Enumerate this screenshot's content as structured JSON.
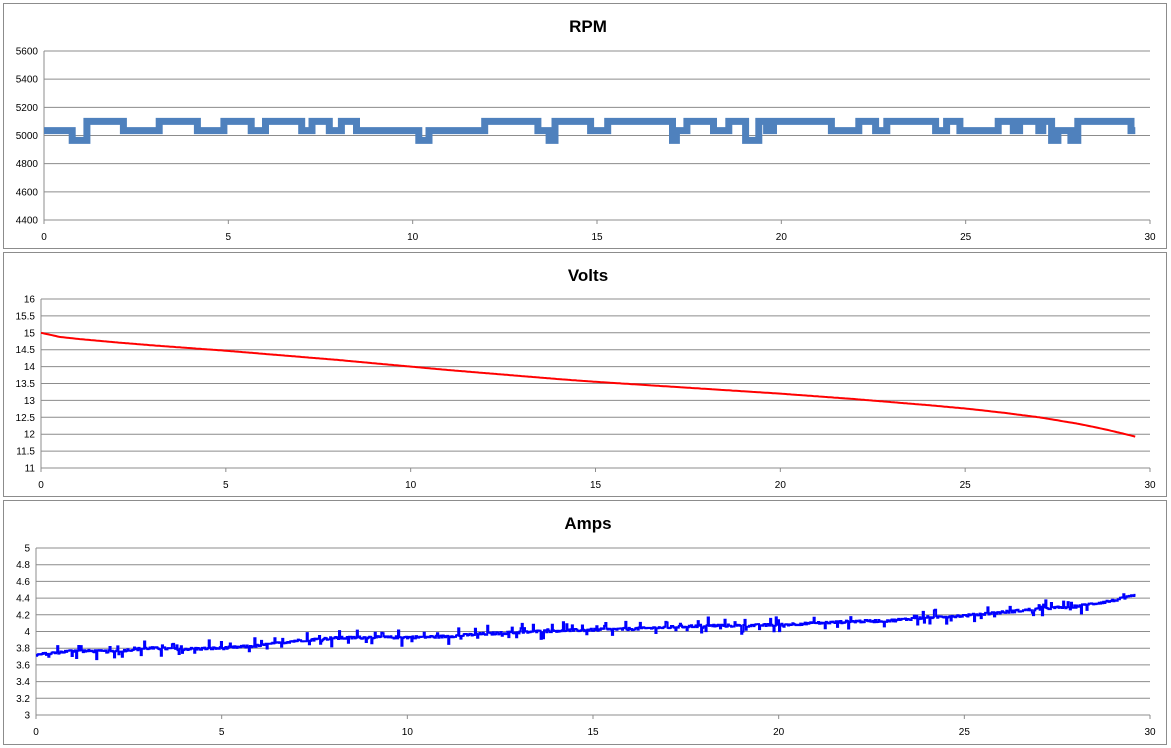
{
  "chart_data": [
    {
      "type": "line",
      "title": "RPM",
      "xlabel": "",
      "ylabel": "",
      "xlim": [
        0,
        30
      ],
      "ylim": [
        4400,
        5600
      ],
      "xticks": [
        0,
        5,
        10,
        15,
        20,
        25,
        30
      ],
      "yticks": [
        4400,
        4600,
        4800,
        5000,
        5200,
        5400,
        5600
      ],
      "grid": true,
      "legend": "none",
      "color": "#4f81bd",
      "series": [
        {
          "x": [
            0,
            1.5,
            2.9,
            4.6,
            6.4,
            7.5,
            9.6,
            11.4,
            13.1,
            15.0,
            16.6,
            18.4,
            20.0,
            21.4,
            22.3,
            24.3,
            25.0,
            26.6,
            27.6,
            29.1,
            29.6
          ],
          "values": [
            5035,
            5035,
            5060,
            5040,
            5045,
            5065,
            5050,
            5040,
            5050,
            5035,
            5060,
            5040,
            5035,
            4985,
            5065,
            5040,
            5045,
            5040,
            5045,
            5035,
            5040
          ],
          "noise_levels": [
            4965,
            5035,
            5100
          ]
        }
      ]
    },
    {
      "type": "line",
      "title": "Volts",
      "xlabel": "",
      "ylabel": "",
      "xlim": [
        0,
        30
      ],
      "ylim": [
        11,
        16
      ],
      "xticks": [
        0,
        5,
        10,
        15,
        20,
        25,
        30
      ],
      "yticks": [
        11,
        11.5,
        12,
        12.5,
        13,
        13.5,
        14,
        14.5,
        15,
        15.5,
        16
      ],
      "grid": true,
      "legend": "none",
      "color": "#ff0000",
      "series": [
        {
          "x": [
            0,
            0.5,
            1,
            2,
            3,
            4,
            5,
            6,
            7,
            8,
            9,
            10,
            11,
            12,
            13,
            14,
            15,
            16,
            17,
            18,
            19,
            20,
            21,
            22,
            23,
            24,
            25,
            26,
            27,
            28,
            28.5,
            29,
            29.6
          ],
          "values": [
            15.0,
            14.88,
            14.82,
            14.72,
            14.63,
            14.55,
            14.47,
            14.38,
            14.29,
            14.2,
            14.1,
            14.0,
            13.9,
            13.81,
            13.72,
            13.63,
            13.55,
            13.48,
            13.41,
            13.34,
            13.27,
            13.2,
            13.12,
            13.04,
            12.95,
            12.86,
            12.76,
            12.64,
            12.5,
            12.32,
            12.21,
            12.09,
            11.93
          ]
        }
      ]
    },
    {
      "type": "line",
      "title": "Amps",
      "xlabel": "",
      "ylabel": "",
      "xlim": [
        0,
        30
      ],
      "ylim": [
        3,
        5
      ],
      "xticks": [
        0,
        5,
        10,
        15,
        20,
        25,
        30
      ],
      "yticks": [
        3,
        3.2,
        3.4,
        3.6,
        3.8,
        4,
        4.2,
        4.4,
        4.6,
        4.8,
        5
      ],
      "grid": true,
      "legend": "none",
      "color": "#0000ff",
      "series": [
        {
          "x": [
            0,
            1,
            2,
            3,
            4,
            5,
            6,
            7,
            8,
            9,
            10,
            11,
            12,
            13,
            14,
            15,
            16,
            17,
            18,
            19,
            20,
            21,
            22,
            23,
            24,
            25,
            26,
            27,
            28,
            29,
            29.6
          ],
          "values": [
            3.72,
            3.77,
            3.76,
            3.8,
            3.79,
            3.8,
            3.83,
            3.89,
            3.92,
            3.93,
            3.93,
            3.94,
            3.97,
            3.99,
            4.01,
            4.02,
            4.03,
            4.05,
            4.07,
            4.07,
            4.08,
            4.1,
            4.12,
            4.13,
            4.17,
            4.19,
            4.23,
            4.27,
            4.3,
            4.37,
            4.43
          ]
        }
      ]
    }
  ]
}
